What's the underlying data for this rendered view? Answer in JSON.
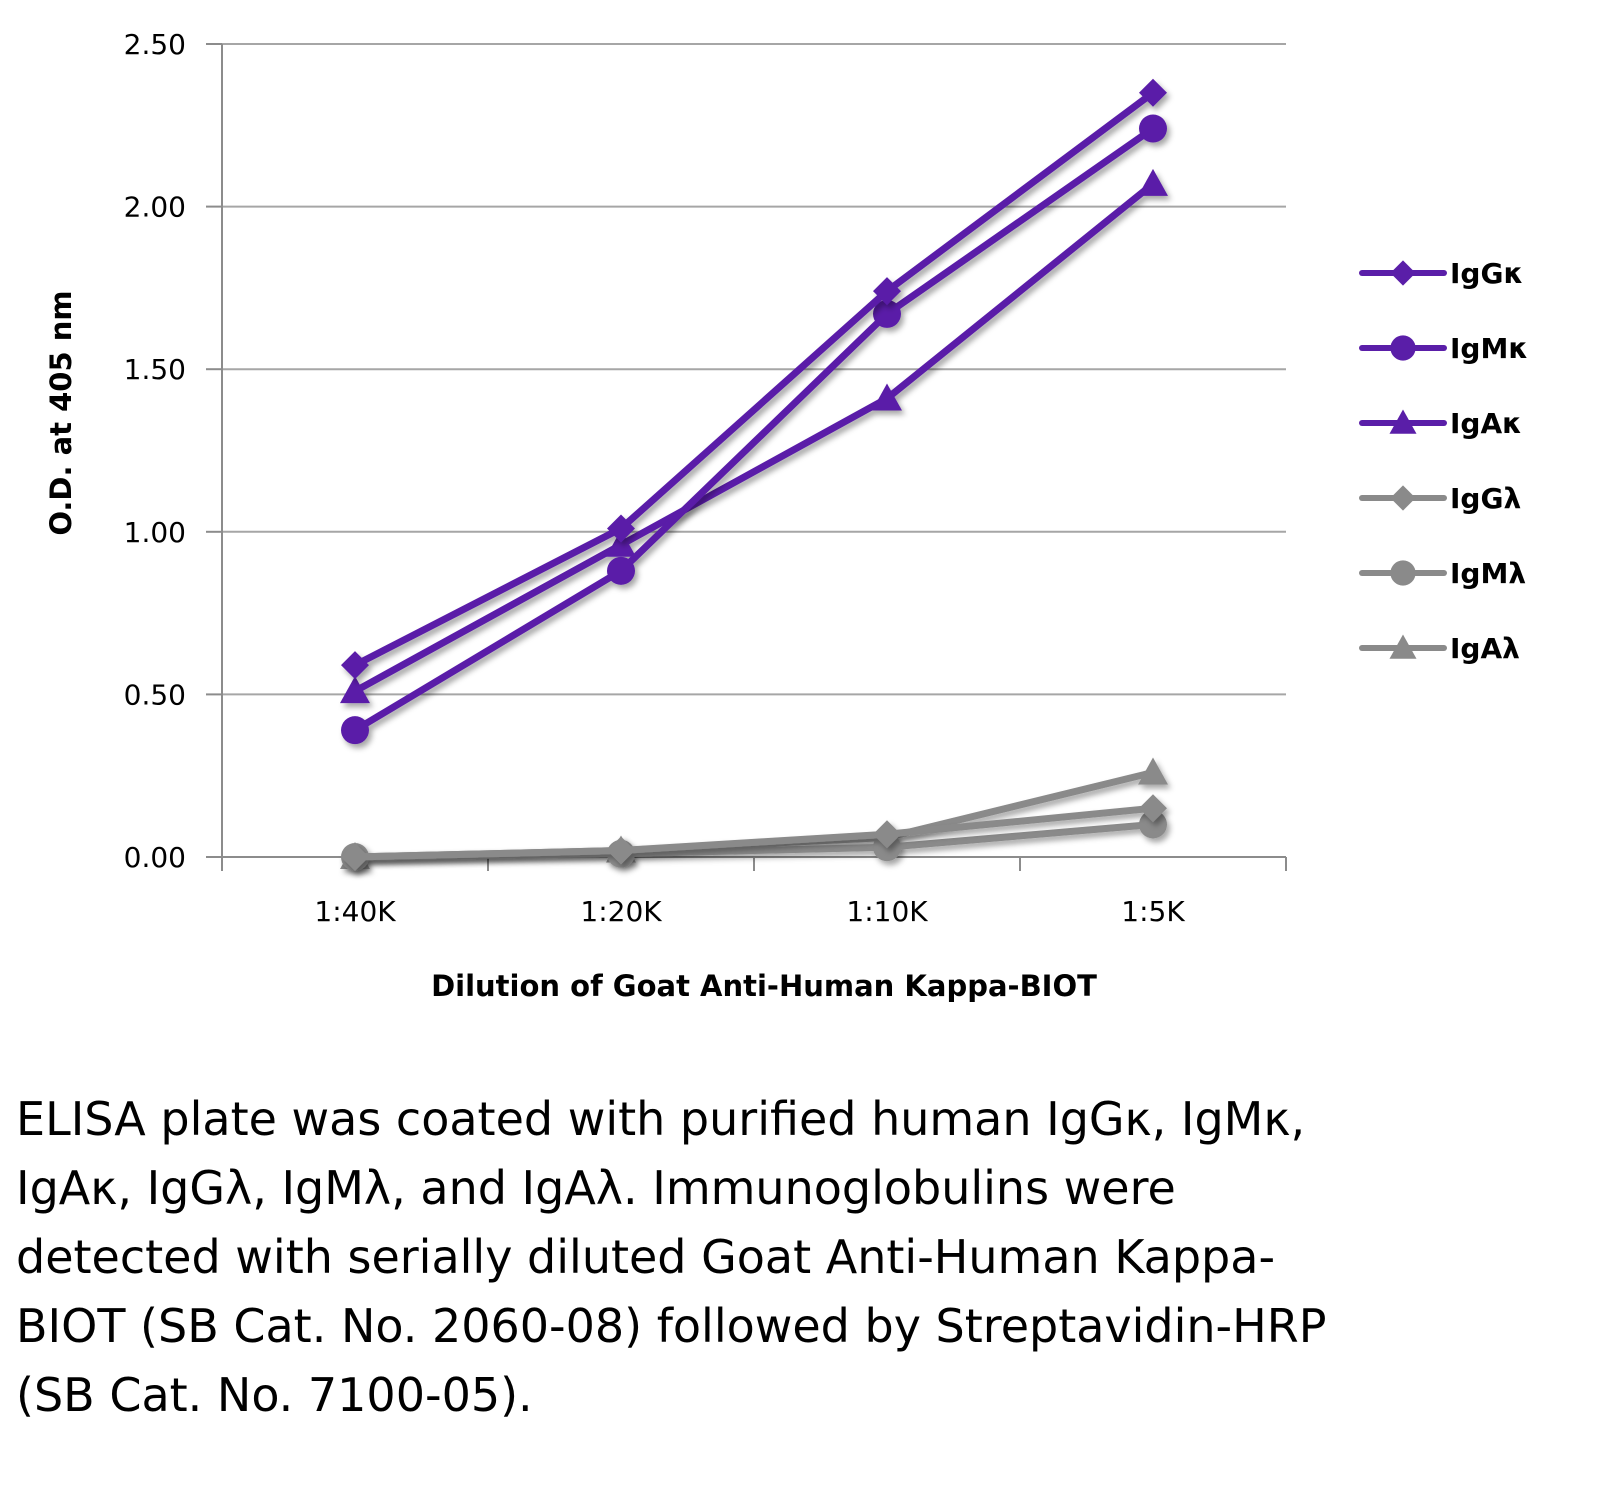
{
  "chart_data": {
    "type": "line",
    "title": "",
    "xlabel": "Dilution of Goat Anti-Human Kappa-BIOT",
    "ylabel": "O.D. at 405 nm",
    "categories": [
      "1:40K",
      "1:20K",
      "1:10K",
      "1:5K"
    ],
    "ylim": [
      0,
      2.5
    ],
    "yticks": [
      0,
      0.5,
      1.0,
      1.5,
      2.0,
      2.5
    ],
    "ytick_labels": [
      "0.00",
      "0.50",
      "1.00",
      "1.50",
      "2.00",
      "2.50"
    ],
    "grid": true,
    "legend": "right",
    "series": [
      {
        "name": "IgGκ",
        "marker": "diamond",
        "color": "#5a1ea8",
        "values": [
          0.59,
          1.01,
          1.74,
          2.35
        ]
      },
      {
        "name": "IgMκ",
        "marker": "circle",
        "color": "#5a1ea8",
        "values": [
          0.39,
          0.88,
          1.67,
          2.24
        ]
      },
      {
        "name": "IgAκ",
        "marker": "triangle",
        "color": "#5a1ea8",
        "values": [
          0.51,
          0.96,
          1.41,
          2.07
        ]
      },
      {
        "name": "IgGλ",
        "marker": "diamond",
        "color": "#8a8a8a",
        "values": [
          0.0,
          0.02,
          0.07,
          0.15
        ]
      },
      {
        "name": "IgMλ",
        "marker": "circle",
        "color": "#8a8a8a",
        "values": [
          0.0,
          0.01,
          0.03,
          0.1
        ]
      },
      {
        "name": "IgAλ",
        "marker": "triangle",
        "color": "#8a8a8a",
        "values": [
          0.0,
          0.02,
          0.06,
          0.26
        ]
      }
    ]
  },
  "caption": "ELISA plate was coated with purified human IgGκ, IgMκ, IgAκ, IgGλ, IgMλ, and IgAλ. Immunoglobulins were detected with serially diluted Goat Anti-Human Kappa-BIOT (SB Cat. No. 2060-08) followed by Streptavidin-HRP (SB Cat. No. 7100-05)."
}
